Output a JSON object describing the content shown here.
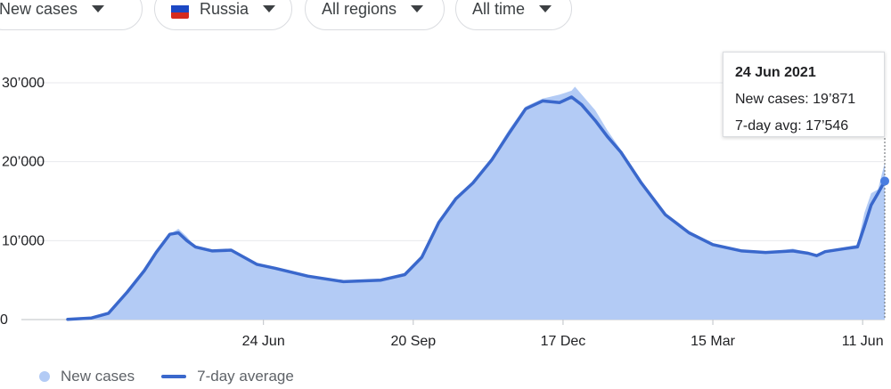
{
  "filters": [
    {
      "label": "New cases",
      "has_flag": false
    },
    {
      "label": "Russia",
      "has_flag": true
    },
    {
      "label": "All regions",
      "has_flag": false
    },
    {
      "label": "All time",
      "has_flag": false
    }
  ],
  "flag_colors": [
    "#ffffff",
    "#1c48c4",
    "#d52b1e"
  ],
  "colors": {
    "area": "#b3cbf5",
    "line": "#3a68cc",
    "grid": "#e8eaed"
  },
  "tooltip": {
    "date": "24 Jun 2021",
    "new_cases_text": "New cases: 19’871",
    "avg_text": "7-day avg: 17’546"
  },
  "legend": {
    "new_cases": "New cases",
    "avg": "7-day average"
  },
  "chart_data": {
    "type": "area",
    "title": "",
    "xlabel": "",
    "ylabel": "",
    "ylim": [
      0,
      30000
    ],
    "xlim": [
      "2020-03-01",
      "2021-06-24"
    ],
    "yticks": [
      {
        "value": 0,
        "label": "0"
      },
      {
        "value": 10000,
        "label": "10’000"
      },
      {
        "value": 20000,
        "label": "20’000"
      },
      {
        "value": 30000,
        "label": "30’000"
      }
    ],
    "xticks": [
      {
        "value": "2020-06-24",
        "label": "24 Jun"
      },
      {
        "value": "2020-09-20",
        "label": "20 Sep"
      },
      {
        "value": "2020-12-17",
        "label": "17 Dec"
      },
      {
        "value": "2021-03-15",
        "label": "15 Mar"
      },
      {
        "value": "2021-06-11",
        "label": "11 Jun"
      }
    ],
    "grid": true,
    "legend_position": "bottom-left",
    "series": [
      {
        "name": "New cases",
        "type": "area",
        "x": [
          "2020-03-01",
          "2020-03-15",
          "2020-03-25",
          "2020-04-05",
          "2020-04-15",
          "2020-04-22",
          "2020-04-30",
          "2020-05-05",
          "2020-05-10",
          "2020-05-15",
          "2020-05-25",
          "2020-06-05",
          "2020-06-20",
          "2020-07-01",
          "2020-07-20",
          "2020-08-10",
          "2020-09-01",
          "2020-09-15",
          "2020-09-25",
          "2020-10-05",
          "2020-10-15",
          "2020-10-25",
          "2020-11-05",
          "2020-11-15",
          "2020-11-25",
          "2020-12-05",
          "2020-12-15",
          "2020-12-22",
          "2020-12-24",
          "2020-12-28",
          "2021-01-05",
          "2021-01-12",
          "2021-01-20",
          "2021-02-01",
          "2021-02-15",
          "2021-03-01",
          "2021-03-15",
          "2021-04-01",
          "2021-04-15",
          "2021-05-01",
          "2021-05-10",
          "2021-05-15",
          "2021-05-20",
          "2021-06-01",
          "2021-06-08",
          "2021-06-12",
          "2021-06-16",
          "2021-06-20",
          "2021-06-24"
        ],
        "values": [
          20,
          200,
          800,
          3500,
          6500,
          8500,
          10800,
          11500,
          10500,
          9200,
          8700,
          8800,
          7000,
          6500,
          5500,
          4800,
          5000,
          5800,
          8000,
          12500,
          15500,
          17500,
          20500,
          24000,
          27000,
          28000,
          28500,
          29000,
          29500,
          28500,
          26500,
          24000,
          21500,
          17500,
          13500,
          11000,
          9500,
          8800,
          8500,
          9000,
          8500,
          8200,
          8700,
          9200,
          9500,
          13500,
          16000,
          16500,
          19871
        ]
      },
      {
        "name": "7-day average",
        "type": "line",
        "x": [
          "2020-03-01",
          "2020-03-15",
          "2020-03-25",
          "2020-04-05",
          "2020-04-15",
          "2020-04-22",
          "2020-04-30",
          "2020-05-05",
          "2020-05-10",
          "2020-05-15",
          "2020-05-25",
          "2020-06-05",
          "2020-06-20",
          "2020-07-01",
          "2020-07-20",
          "2020-08-10",
          "2020-09-01",
          "2020-09-15",
          "2020-09-25",
          "2020-10-05",
          "2020-10-15",
          "2020-10-25",
          "2020-11-05",
          "2020-11-15",
          "2020-11-25",
          "2020-12-05",
          "2020-12-15",
          "2020-12-22",
          "2020-12-28",
          "2021-01-05",
          "2021-01-12",
          "2021-01-20",
          "2021-02-01",
          "2021-02-15",
          "2021-03-01",
          "2021-03-15",
          "2021-04-01",
          "2021-04-15",
          "2021-05-01",
          "2021-05-10",
          "2021-05-15",
          "2021-05-20",
          "2021-06-01",
          "2021-06-08",
          "2021-06-12",
          "2021-06-16",
          "2021-06-20",
          "2021-06-24"
        ],
        "values": [
          20,
          200,
          800,
          3500,
          6200,
          8500,
          10800,
          11000,
          10000,
          9200,
          8700,
          8800,
          7000,
          6500,
          5500,
          4800,
          5000,
          5700,
          7900,
          12300,
          15300,
          17300,
          20200,
          23500,
          26700,
          27700,
          27500,
          28200,
          27200,
          25200,
          23200,
          21200,
          17300,
          13300,
          11000,
          9500,
          8700,
          8500,
          8700,
          8400,
          8100,
          8600,
          9000,
          9200,
          11800,
          14500,
          16000,
          17546
        ]
      }
    ]
  }
}
